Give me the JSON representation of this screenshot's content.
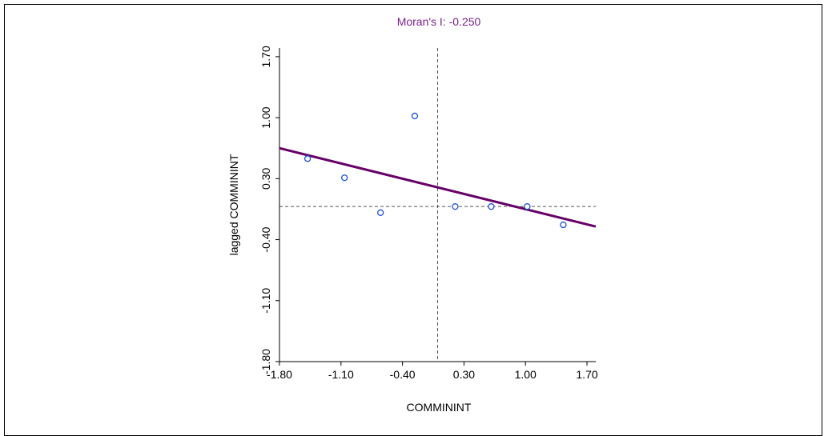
{
  "chart_data": {
    "type": "scatter",
    "title": "Moran's I: -0.250",
    "xlabel": "COMMININT",
    "ylabel": "lagged COMMININT",
    "xlim": [
      -1.8,
      1.8
    ],
    "ylim": [
      -1.8,
      1.8
    ],
    "x_ticks": [
      "-1.80",
      "-1.10",
      "-0.40",
      "0.30",
      "1.00",
      "1.70"
    ],
    "y_ticks": [
      "-1.80",
      "-1.10",
      "-0.40",
      "0.30",
      "1.00",
      "1.70"
    ],
    "points": [
      {
        "x": -1.48,
        "y": 0.53
      },
      {
        "x": -1.06,
        "y": 0.31
      },
      {
        "x": -0.65,
        "y": -0.09
      },
      {
        "x": -0.26,
        "y": 1.02
      },
      {
        "x": 0.2,
        "y": -0.02
      },
      {
        "x": 0.61,
        "y": -0.02
      },
      {
        "x": 1.02,
        "y": -0.02
      },
      {
        "x": 1.43,
        "y": -0.23
      }
    ],
    "regression": {
      "slope": -0.25,
      "intercept": 0.2
    },
    "reference_lines": {
      "x": 0.0,
      "y": -0.02
    },
    "colors": {
      "title": "#7b1f8c",
      "regression": "#660066",
      "points": "#1a4fd6",
      "reference": "#555555",
      "axes": "#000000"
    }
  }
}
